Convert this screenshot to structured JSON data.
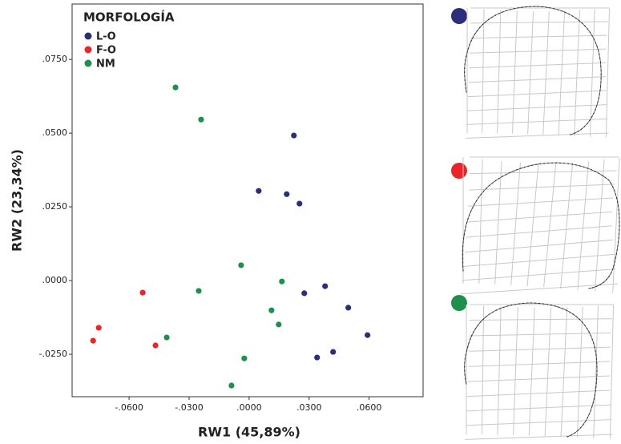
{
  "chart_data": {
    "type": "scatter",
    "xlabel": "RW1 (45,89%)",
    "ylabel": "RW2 (23,34%)",
    "legend_title": "MORFOLOGÍA",
    "legend": "upper left",
    "grid": false,
    "xlim": [
      -0.0885,
      0.087
    ],
    "ylim": [
      -0.0394,
      0.0938
    ],
    "xticks": [
      {
        "value": -0.06,
        "label": "-.0600"
      },
      {
        "value": -0.03,
        "label": "-.0300"
      },
      {
        "value": 0,
        "label": ".0000"
      },
      {
        "value": 0.03,
        "label": ".0300"
      },
      {
        "value": 0.06,
        "label": ".0600"
      }
    ],
    "yticks": [
      {
        "value": -0.025,
        "label": "-.0250"
      },
      {
        "value": 0,
        "label": ".0000"
      },
      {
        "value": 0.025,
        "label": ".0250"
      },
      {
        "value": 0.05,
        "label": ".0500"
      },
      {
        "value": 0.075,
        "label": ".0750"
      }
    ],
    "series": [
      {
        "name": "L-O",
        "color": "#2b2f7a",
        "x": [
          0.0224,
          0.0048,
          0.0188,
          0.0252,
          0.038,
          0.0276,
          0.0496,
          0.0592,
          0.042,
          0.034
        ],
        "y": [
          0.0492,
          0.0304,
          0.0293,
          0.0261,
          -0.0019,
          -0.0043,
          -0.0092,
          -0.0185,
          -0.0242,
          -0.0261
        ]
      },
      {
        "name": "F-O",
        "color": "#e8262a",
        "x": [
          -0.0532,
          -0.0752,
          -0.078,
          -0.0468
        ],
        "y": [
          -0.0041,
          -0.016,
          -0.0204,
          -0.022
        ]
      },
      {
        "name": "NM",
        "color": "#1f8f4e",
        "x": [
          -0.0368,
          -0.024,
          -0.004,
          0.0164,
          -0.0252,
          0.0112,
          0.0148,
          -0.0412,
          -0.0024,
          -0.0088
        ],
        "y": [
          0.0655,
          0.0546,
          0.0052,
          -0.0003,
          -0.0035,
          -0.0101,
          -0.0149,
          -0.0193,
          -0.0264,
          -0.0356
        ]
      }
    ]
  }
}
